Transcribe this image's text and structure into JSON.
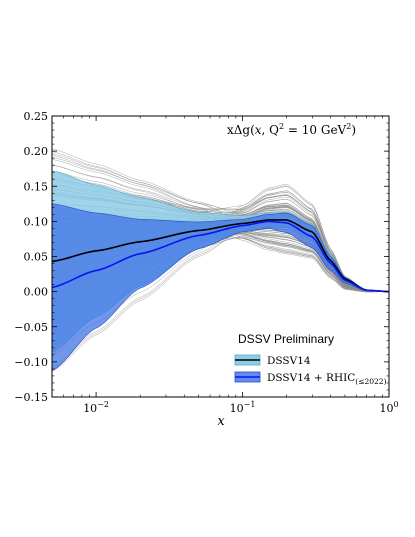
{
  "chart_data": {
    "type": "line",
    "title_annotation": "xΔg(x, Q² = 10 GeV²)",
    "annotation_parts": {
      "func": "xΔg(",
      "var": "x",
      "mid": ", Q",
      "sup": "2",
      "end": " = 10 GeV",
      "sup2": "2",
      "close": ")"
    },
    "subtitle": "DSSV Preliminary",
    "xlabel": "x",
    "ylabel": "",
    "xscale": "log",
    "xlim": [
      0.005,
      1.0
    ],
    "ylim": [
      -0.15,
      0.25
    ],
    "y_ticks": [
      "−0.15",
      "−0.10",
      "−0.05",
      "0.00",
      "0.05",
      "0.10",
      "0.15",
      "0.20",
      "0.25"
    ],
    "y_tick_values": [
      -0.15,
      -0.1,
      -0.05,
      0.0,
      0.05,
      0.1,
      0.15,
      0.2,
      0.25
    ],
    "x_ticks": [
      {
        "value": 0.01,
        "base": "10",
        "exp": "−2"
      },
      {
        "value": 0.1,
        "base": "10",
        "exp": "−1"
      },
      {
        "value": 1.0,
        "base": "10",
        "exp": "0"
      }
    ],
    "x": [
      0.005,
      0.01,
      0.02,
      0.05,
      0.1,
      0.15,
      0.2,
      0.3,
      0.4,
      0.5,
      0.7,
      1.0
    ],
    "series": [
      {
        "name": "DSSV14",
        "central": [
          0.043,
          0.058,
          0.071,
          0.087,
          0.097,
          0.102,
          0.102,
          0.085,
          0.044,
          0.018,
          0.002,
          0.0
        ],
        "band_upper": [
          0.172,
          0.152,
          0.134,
          0.113,
          0.108,
          0.112,
          0.113,
          0.096,
          0.052,
          0.021,
          0.002,
          0.0
        ],
        "band_lower": [
          -0.086,
          -0.036,
          0.008,
          0.061,
          0.086,
          0.092,
          0.091,
          0.074,
          0.036,
          0.015,
          0.001,
          0.0
        ],
        "color": "#000000",
        "band_color": "#8fcde6"
      },
      {
        "name": "DSSV14 + RHIC(≤2022)",
        "legend_main": "DSSV14 + RHIC",
        "legend_sub": "(≤2022)",
        "central": [
          0.006,
          0.03,
          0.054,
          0.08,
          0.094,
          0.1,
          0.098,
          0.078,
          0.04,
          0.016,
          0.002,
          0.0
        ],
        "band_upper": [
          0.125,
          0.112,
          0.103,
          0.099,
          0.103,
          0.11,
          0.112,
          0.094,
          0.05,
          0.02,
          0.002,
          0.0
        ],
        "band_lower": [
          -0.113,
          -0.052,
          0.005,
          0.061,
          0.085,
          0.09,
          0.084,
          0.062,
          0.03,
          0.012,
          0.001,
          0.0
        ],
        "color": "#0a14f0",
        "band_color": "#3a6fe6"
      }
    ],
    "replica_color": "#8c8c8c",
    "replica_count": 90,
    "legend_position": "lower-right",
    "grid": false
  }
}
